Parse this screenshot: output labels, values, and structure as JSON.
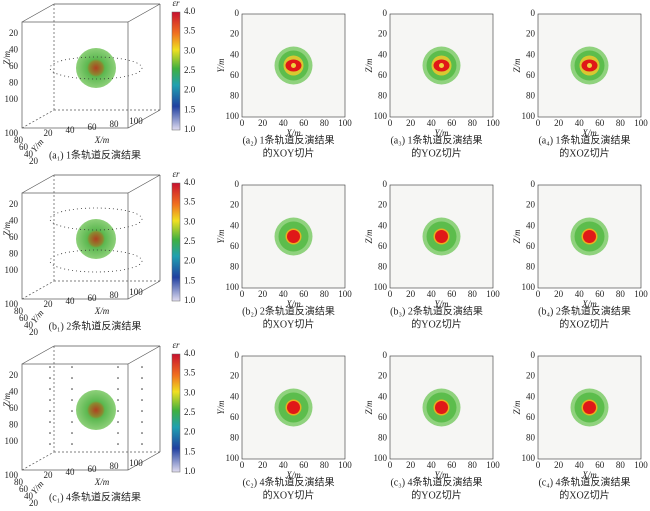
{
  "axis_ticks": [
    "0",
    "20",
    "40",
    "60",
    "80",
    "100"
  ],
  "volume_z_ticks": [
    "20",
    "40",
    "60",
    "80",
    "100"
  ],
  "volume_y_ticks": [
    "100",
    "80",
    "60",
    "40",
    "20"
  ],
  "volume_x_ticks": [
    "20",
    "40",
    "60",
    "80",
    "100"
  ],
  "colorbar_label": "εr",
  "colorbar_ticks": [
    "4.0",
    "3.5",
    "3.0",
    "2.5",
    "2.0",
    "1.5",
    "1.0"
  ],
  "rows": [
    {
      "volume": {
        "z_label": "Z/m",
        "y_label": "Y/m",
        "x_label": "X/m",
        "caption": "(a₁) 1条轨道反演结果"
      },
      "slices": [
        {
          "y_label": "Y/m",
          "x_label": "X/m",
          "caption": [
            "(a₂) 1条轨道反演结果",
            "的XOY切片"
          ]
        },
        {
          "y_label": "Z/m",
          "x_label": "Y/m",
          "caption": [
            "(a₃) 1条轨道反演结果",
            "的YOZ切片"
          ]
        },
        {
          "y_label": "Z/m",
          "x_label": "X/m",
          "caption": [
            "(a₄) 1条轨道反演结果",
            "的XOZ切片"
          ]
        }
      ]
    },
    {
      "volume": {
        "z_label": "Z/m",
        "y_label": "Y/m",
        "x_label": "X/m",
        "caption": "(b₁) 2条轨道反演结果"
      },
      "slices": [
        {
          "y_label": "Y/m",
          "x_label": "X/m",
          "caption": [
            "(b₂) 2条轨道反演结果",
            "的XOY切片"
          ]
        },
        {
          "y_label": "Z/m",
          "x_label": "Y/m",
          "caption": [
            "(b₃) 2条轨道反演结果",
            "的YOZ切片"
          ]
        },
        {
          "y_label": "Z/m",
          "x_label": "X/m",
          "caption": [
            "(b₄) 2条轨道反演结果",
            "的XOZ切片"
          ]
        }
      ]
    },
    {
      "volume": {
        "z_label": "Z/m",
        "y_label": "Y/m",
        "x_label": "X/m",
        "caption": "(c₁) 4条轨道反演结果"
      },
      "slices": [
        {
          "y_label": "Y/m",
          "x_label": "X/m",
          "caption": [
            "(c₂) 4条轨道反演结果",
            "的XOY切片"
          ]
        },
        {
          "y_label": "Z/m",
          "x_label": "Y/m",
          "caption": [
            "(c₃) 4条轨道反演结果",
            "的YOZ切片"
          ]
        },
        {
          "y_label": "Z/m",
          "x_label": "X/m",
          "caption": [
            "(c₄) 4条轨道反演结果",
            "的XOZ切片"
          ]
        }
      ]
    }
  ]
}
